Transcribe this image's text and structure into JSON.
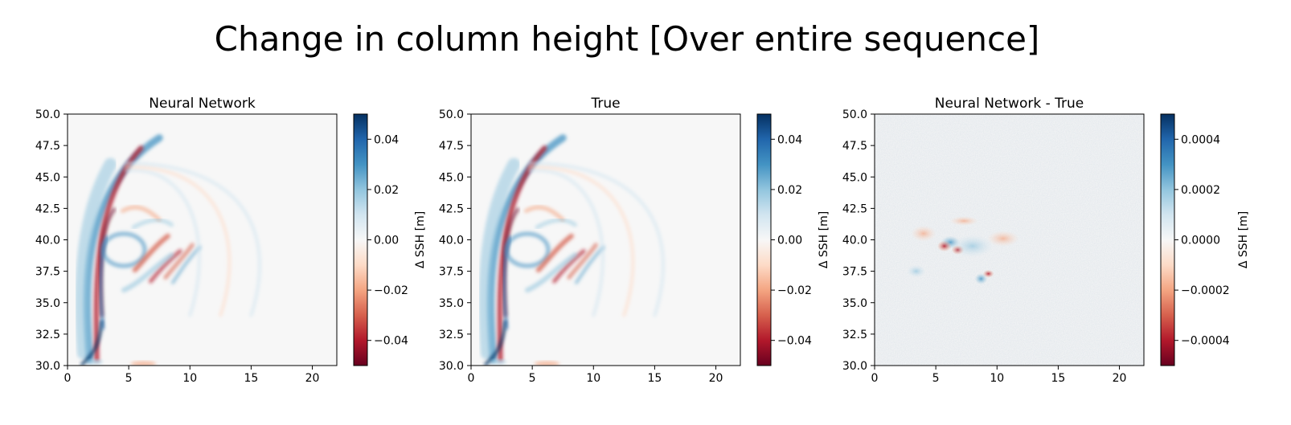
{
  "figure_title": "Change in column height [Over entire sequence]",
  "colormap": [
    "#67001f",
    "#b2182b",
    "#d6604d",
    "#f4a582",
    "#fddbc7",
    "#f7f7f7",
    "#d1e5f0",
    "#92c5de",
    "#4393c3",
    "#2166ac",
    "#053061"
  ],
  "chart_data": [
    {
      "type": "heatmap",
      "title": "Neural Network",
      "xlim": [
        0,
        22
      ],
      "ylim": [
        30,
        50
      ],
      "x_ticks": [
        "0",
        "5",
        "10",
        "15",
        "20"
      ],
      "y_ticks": [
        "30.0",
        "32.5",
        "35.0",
        "37.5",
        "40.0",
        "42.5",
        "45.0",
        "47.5",
        "50.0"
      ],
      "colorbar": {
        "label": "Δ SSH [m]",
        "range": [
          -0.05,
          0.05
        ],
        "ticks": [
          "0.04",
          "0.02",
          "0.00",
          "−0.02",
          "−0.04"
        ]
      }
    },
    {
      "type": "heatmap",
      "title": "True",
      "xlim": [
        0,
        22
      ],
      "ylim": [
        30,
        50
      ],
      "x_ticks": [
        "0",
        "5",
        "10",
        "15",
        "20"
      ],
      "y_ticks": [
        "30.0",
        "32.5",
        "35.0",
        "37.5",
        "40.0",
        "42.5",
        "45.0",
        "47.5",
        "50.0"
      ],
      "colorbar": {
        "label": "Δ SSH [m]",
        "range": [
          -0.05,
          0.05
        ],
        "ticks": [
          "0.04",
          "0.02",
          "0.00",
          "−0.02",
          "−0.04"
        ]
      }
    },
    {
      "type": "heatmap",
      "title": "Neural Network - True",
      "xlim": [
        0,
        22
      ],
      "ylim": [
        30,
        50
      ],
      "x_ticks": [
        "0",
        "5",
        "10",
        "15",
        "20"
      ],
      "y_ticks": [
        "30.0",
        "32.5",
        "35.0",
        "37.5",
        "40.0",
        "42.5",
        "45.0",
        "47.5",
        "50.0"
      ],
      "colorbar": {
        "label": "Δ SSH [m]",
        "range": [
          -0.0005,
          0.0005
        ],
        "ticks": [
          "0.0004",
          "0.0002",
          "0.0000",
          "−0.0002",
          "−0.0004"
        ]
      }
    }
  ]
}
